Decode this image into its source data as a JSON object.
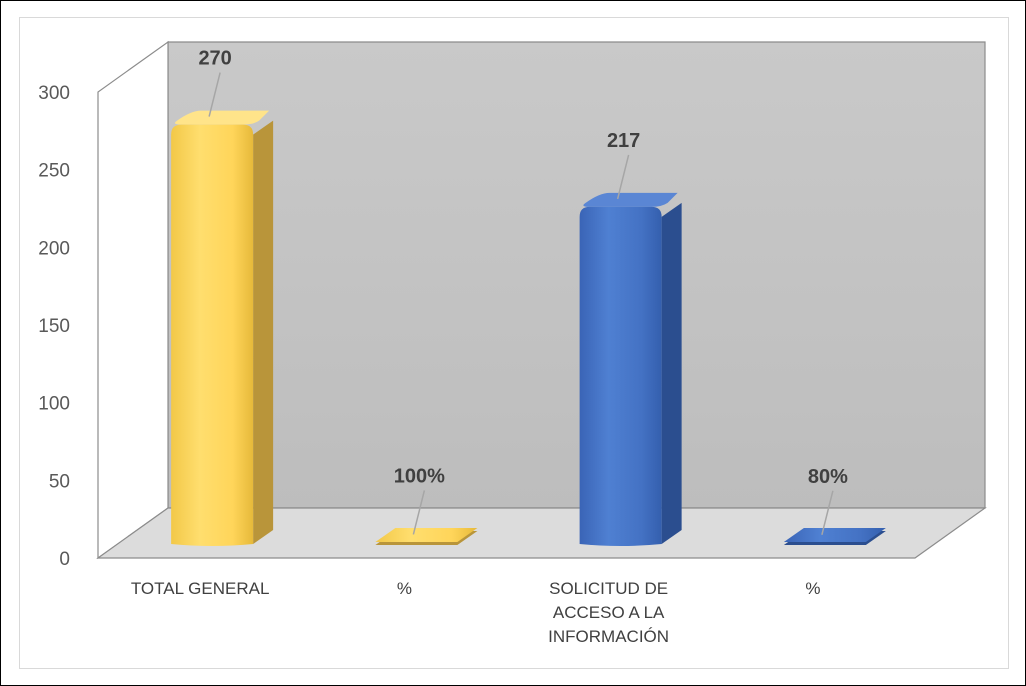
{
  "chart_data": {
    "type": "bar",
    "title": "",
    "xlabel": "",
    "ylabel": "",
    "ylim": [
      0,
      300
    ],
    "yticks": [
      "0",
      "50",
      "100",
      "150",
      "200",
      "250",
      "300"
    ],
    "categories": [
      [
        "TOTAL GENERAL"
      ],
      [
        "%"
      ],
      [
        "SOLICITUD DE",
        "ACCESO A LA",
        "INFORMACIÓN"
      ],
      [
        "%"
      ]
    ],
    "values": [
      270,
      1,
      217,
      0.8
    ],
    "data_labels": [
      "270",
      "100%",
      "217",
      "80%"
    ],
    "colors": [
      "#FFD966",
      "#FFD966",
      "#4472C4",
      "#4472C4"
    ],
    "grid": false,
    "legend": "none",
    "style": "3d"
  }
}
